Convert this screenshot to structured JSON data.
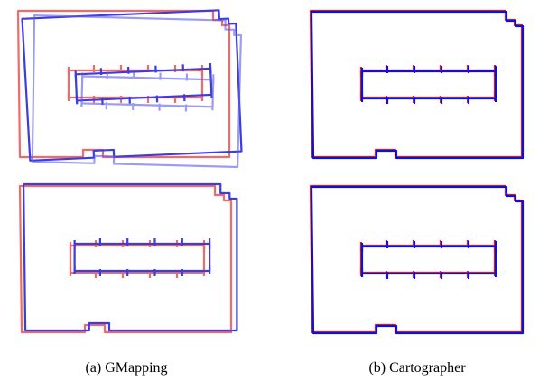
{
  "subfigures": [
    {
      "caption": "(a) GMapping"
    },
    {
      "caption": "(b) Cartographer"
    }
  ]
}
